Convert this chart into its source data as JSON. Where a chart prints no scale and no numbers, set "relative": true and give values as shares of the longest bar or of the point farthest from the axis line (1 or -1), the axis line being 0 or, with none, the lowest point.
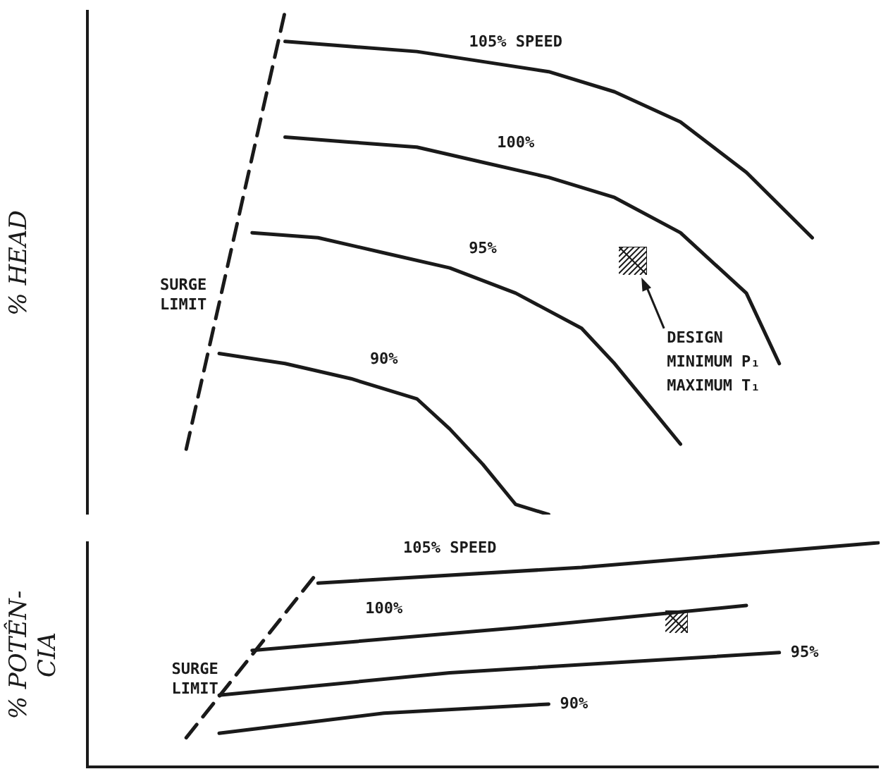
{
  "chart_data": [
    {
      "type": "line",
      "ylabel": "% HEAD",
      "relative": true,
      "legend": false,
      "grid": false,
      "tick_labels": false,
      "marker": "none",
      "line_style": "solid",
      "categories": [
        null,
        null,
        null,
        null,
        null,
        null,
        null,
        null,
        null,
        null,
        null,
        null,
        null,
        null,
        null,
        null,
        null,
        null,
        null,
        null,
        null,
        null,
        null,
        null,
        null
      ],
      "annotations": [
        "DESIGN MINIMUM P₁ MAXIMUM T₁"
      ],
      "series": [
        {
          "name": "105% SPEED",
          "color": "#1a1a1a",
          "values": [
            null,
            null,
            null,
            null,
            null,
            null,
            0.94,
            null,
            0.93,
            null,
            0.92,
            null,
            0.9,
            null,
            0.88,
            null,
            0.84,
            null,
            0.78,
            null,
            0.68,
            null,
            0.55,
            null,
            null
          ]
        },
        {
          "name": "100%",
          "color": "#1a1a1a",
          "values": [
            null,
            null,
            null,
            null,
            null,
            null,
            0.75,
            null,
            0.74,
            null,
            0.73,
            null,
            0.7,
            null,
            0.67,
            null,
            0.63,
            null,
            0.56,
            null,
            0.44,
            0.3,
            null,
            null,
            null
          ]
        },
        {
          "name": "95%",
          "color": "#1a1a1a",
          "values": [
            null,
            null,
            null,
            null,
            null,
            0.56,
            null,
            0.55,
            null,
            0.52,
            null,
            0.49,
            null,
            0.44,
            null,
            0.37,
            0.3,
            0.22,
            0.14,
            null,
            null,
            null,
            null,
            null,
            null
          ]
        },
        {
          "name": "90%",
          "color": "#1a1a1a",
          "values": [
            null,
            null,
            null,
            null,
            0.32,
            null,
            0.3,
            null,
            0.27,
            null,
            0.23,
            0.17,
            0.1,
            0.02,
            0,
            null,
            null,
            null,
            null,
            null,
            null,
            null,
            null,
            null,
            null
          ]
        },
        {
          "name": "SURGE LIMIT",
          "color": "#1a1a1a",
          "line_style": "dashed",
          "values": [
            null,
            null,
            null,
            0.13,
            null,
            null,
            1,
            null,
            null,
            null,
            null,
            null,
            null,
            null,
            null,
            null,
            null,
            null,
            null,
            null,
            null,
            null,
            null,
            null,
            null
          ]
        }
      ]
    },
    {
      "type": "line",
      "ylabel": "% POTÊN-CIA",
      "relative": true,
      "legend": false,
      "grid": false,
      "tick_labels": false,
      "marker": "none",
      "line_style": "solid",
      "categories": [
        null,
        null,
        null,
        null,
        null,
        null,
        null,
        null,
        null,
        null,
        null,
        null,
        null,
        null,
        null,
        null,
        null,
        null,
        null,
        null,
        null,
        null,
        null,
        null,
        null
      ],
      "series": [
        {
          "name": "105% SPEED",
          "color": "#1a1a1a",
          "values": [
            null,
            null,
            null,
            null,
            null,
            null,
            null,
            0.82,
            null,
            null,
            null,
            null,
            null,
            null,
            null,
            0.89,
            null,
            null,
            null,
            null,
            null,
            null,
            null,
            null,
            1
          ]
        },
        {
          "name": "100%",
          "color": "#1a1a1a",
          "values": [
            null,
            null,
            null,
            null,
            null,
            0.52,
            null,
            null,
            null,
            null,
            null,
            null,
            null,
            0.62,
            null,
            null,
            null,
            null,
            null,
            null,
            0.72,
            null,
            null,
            null,
            null
          ]
        },
        {
          "name": "95%",
          "color": "#1a1a1a",
          "values": [
            null,
            null,
            null,
            null,
            0.32,
            null,
            null,
            null,
            null,
            null,
            null,
            0.42,
            null,
            null,
            null,
            null,
            null,
            null,
            null,
            null,
            null,
            0.51,
            null,
            null,
            null
          ]
        },
        {
          "name": "90%",
          "color": "#1a1a1a",
          "values": [
            null,
            null,
            null,
            null,
            0.15,
            null,
            null,
            null,
            null,
            0.24,
            null,
            null,
            null,
            null,
            0.28,
            null,
            null,
            null,
            null,
            null,
            null,
            null,
            null,
            null,
            null
          ]
        },
        {
          "name": "SURGE LIMIT",
          "color": "#1a1a1a",
          "line_style": "dashed",
          "values": [
            null,
            null,
            null,
            0.13,
            null,
            null,
            null,
            0.87,
            null,
            null,
            null,
            null,
            null,
            null,
            null,
            null,
            null,
            null,
            null,
            null,
            null,
            null,
            null,
            null,
            null
          ]
        }
      ]
    }
  ]
}
